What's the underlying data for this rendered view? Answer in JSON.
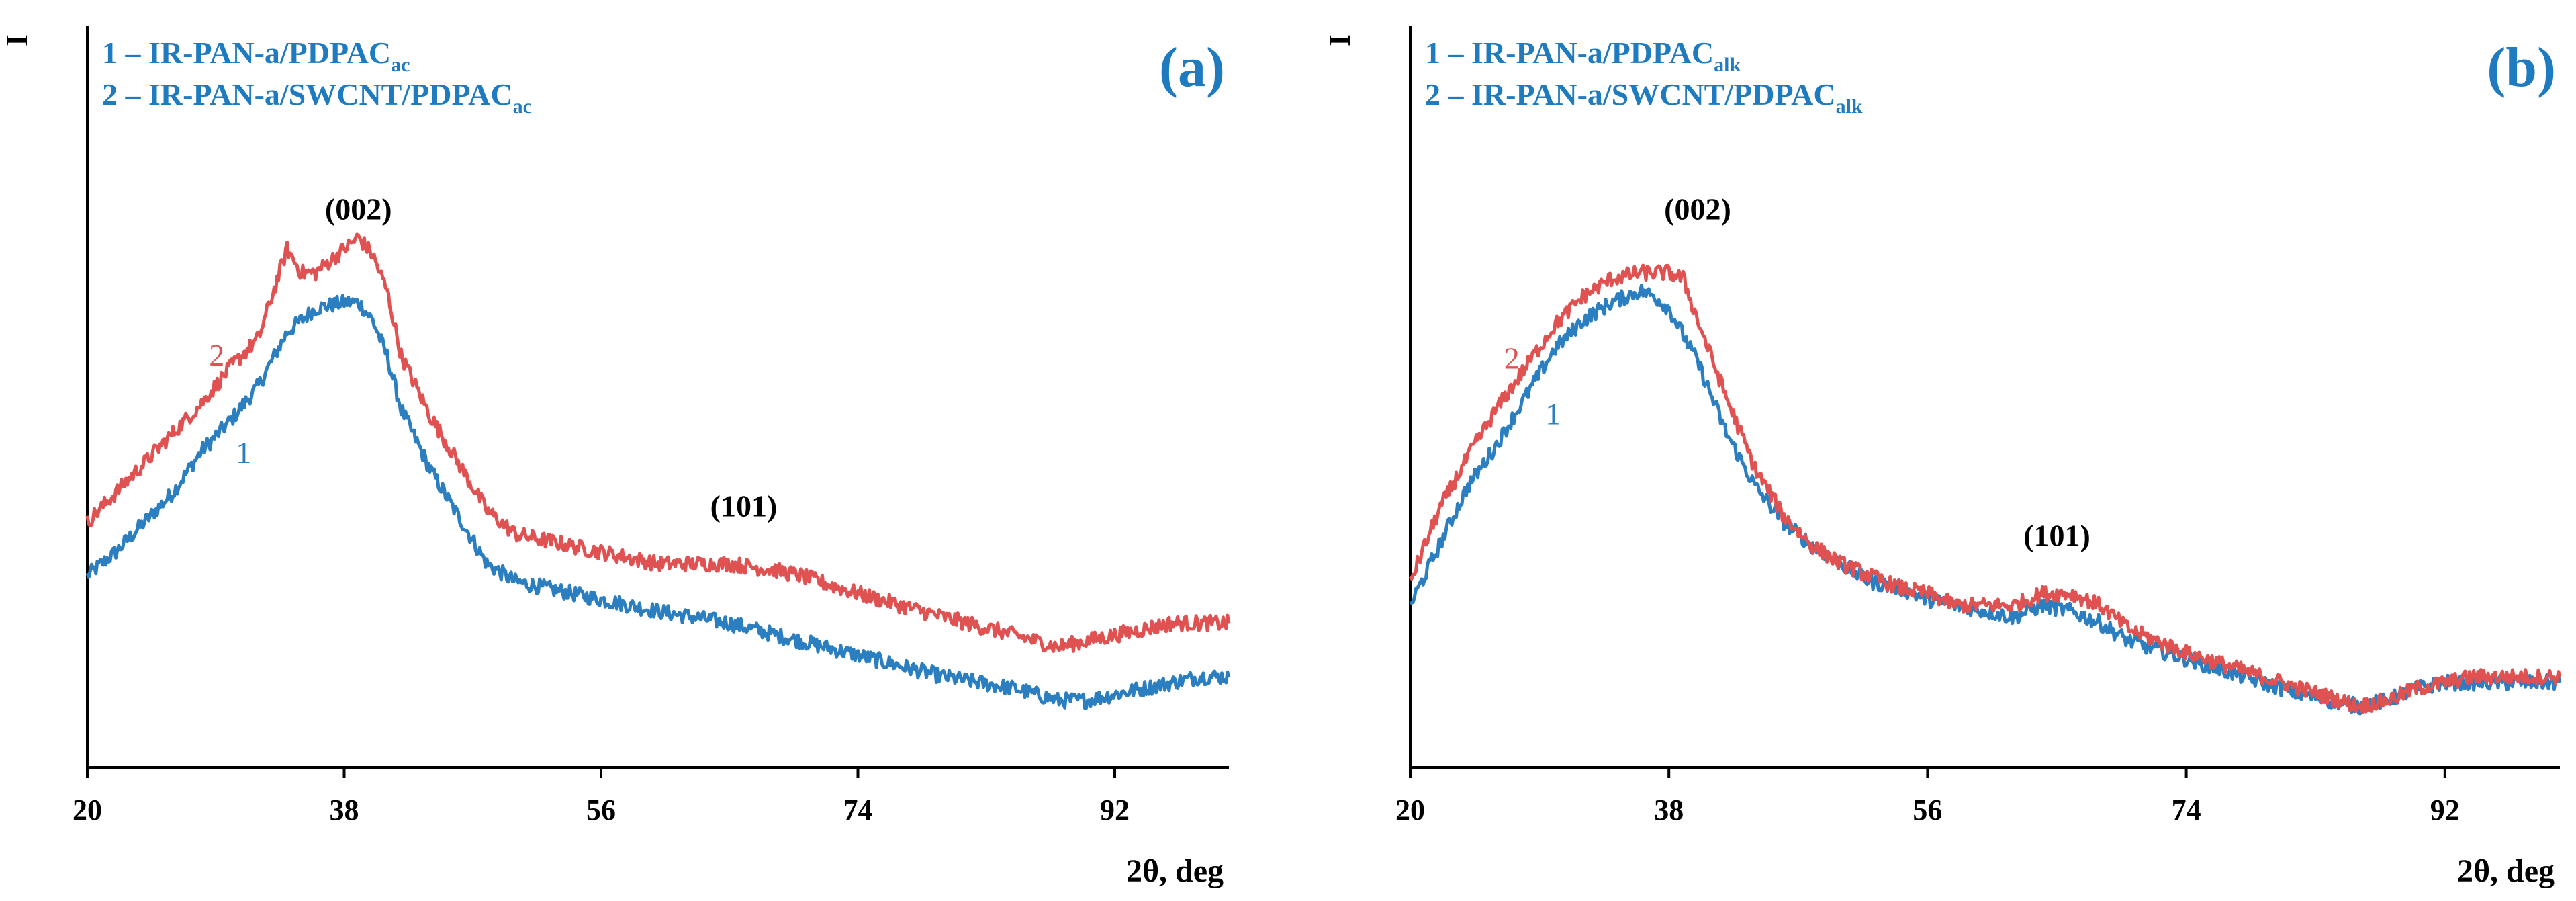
{
  "colors": {
    "series1": "#2b7fc0",
    "series2": "#e05252",
    "text_accent": "#1f7bc0"
  },
  "chart_data": [
    {
      "type": "line",
      "panel_label": "(a)",
      "title": "",
      "xlabel": "2θ, deg",
      "ylabel": "I",
      "xlim": [
        20,
        100
      ],
      "ylim": [
        0,
        100
      ],
      "x_ticks": [
        "20",
        "38",
        "56",
        "74",
        "92"
      ],
      "legend": {
        "entry1": {
          "text": "1 – IR-PAN-a/PDPAC",
          "sub": "ac"
        },
        "entry2": {
          "text": "2 – IR-PAN-a/SWCNT/PDPAC",
          "sub": "ac"
        }
      },
      "curve_labels": {
        "c1": "1",
        "c2": "2"
      },
      "curve_label_x": {
        "c1": 29,
        "c2": 29
      },
      "peak_labels": [
        {
          "label": "(002)",
          "x": 39,
          "y": 90
        },
        {
          "label": "(101)",
          "x": 66,
          "y": 40
        }
      ],
      "series": [
        {
          "name": "1",
          "x": [
            20,
            22,
            24,
            26,
            28,
            30,
            32,
            34,
            36,
            38,
            39,
            40,
            41,
            42,
            44,
            46,
            48,
            50,
            52,
            54,
            56,
            60,
            65,
            70,
            75,
            80,
            85,
            88,
            90,
            92,
            94,
            96,
            98,
            100
          ],
          "y": [
            30,
            34,
            39,
            44,
            51,
            56,
            62,
            71,
            75,
            76,
            76,
            73,
            67,
            58,
            48,
            40,
            32,
            29,
            28,
            27,
            26,
            24,
            22,
            19,
            16,
            13,
            11,
            9,
            9,
            10,
            11,
            12,
            13,
            13
          ]
        },
        {
          "name": "2",
          "x": [
            20,
            22,
            24,
            26,
            28,
            30,
            32,
            34,
            35,
            36,
            38,
            39,
            40,
            41,
            42,
            44,
            46,
            48,
            50,
            52,
            56,
            60,
            65,
            68,
            70,
            74,
            80,
            85,
            88,
            90,
            92,
            94,
            96,
            100
          ],
          "y": [
            39,
            44,
            49,
            54,
            59,
            65,
            70,
            85,
            81,
            81,
            85,
            87,
            84,
            78,
            67,
            57,
            49,
            41,
            37,
            36,
            34,
            32,
            32,
            31,
            30,
            27,
            23,
            20,
            18,
            19,
            20,
            21,
            22,
            22
          ]
        }
      ]
    },
    {
      "type": "line",
      "panel_label": "(b)",
      "title": "",
      "xlabel": "2θ, deg",
      "ylabel": "I",
      "xlim": [
        20,
        100
      ],
      "ylim": [
        0,
        100
      ],
      "x_ticks": [
        "20",
        "38",
        "56",
        "74",
        "92"
      ],
      "legend": {
        "entry1": {
          "text": "1 – IR-PAN-a/PDPAC",
          "sub": "alk"
        },
        "entry2": {
          "text": "2 – IR-PAN-a/SWCNT/PDPAC",
          "sub": "alk"
        }
      },
      "curve_labels": {
        "c1": "1",
        "c2": "2"
      },
      "curve_label_x": {
        "c1": 28,
        "c2": 27
      },
      "peak_labels": [
        {
          "label": "(002)",
          "x": 40,
          "y": 90
        },
        {
          "label": "(101)",
          "x": 65,
          "y": 35
        }
      ],
      "series": [
        {
          "name": "1",
          "x": [
            20,
            22,
            24,
            26,
            28,
            30,
            32,
            34,
            36,
            37,
            38,
            40,
            42,
            44,
            46,
            48,
            50,
            52,
            54,
            56,
            58,
            60,
            62,
            64,
            66,
            68,
            70,
            74,
            78,
            82,
            86,
            88,
            90,
            92,
            94,
            96,
            100
          ],
          "y": [
            25,
            35,
            45,
            52,
            60,
            68,
            73,
            76,
            78,
            77,
            75,
            66,
            54,
            45,
            39,
            35,
            32,
            29,
            28,
            26,
            25,
            24,
            23,
            25,
            24,
            22,
            19,
            16,
            13,
            10,
            8,
            9,
            11,
            12,
            12,
            12,
            12
          ]
        },
        {
          "name": "2",
          "x": [
            20,
            22,
            24,
            26,
            28,
            30,
            32,
            34,
            36,
            38,
            39,
            40,
            42,
            44,
            46,
            48,
            50,
            52,
            54,
            56,
            58,
            60,
            62,
            64,
            66,
            68,
            70,
            74,
            78,
            82,
            86,
            88,
            90,
            92,
            94,
            96,
            100
          ],
          "y": [
            29,
            41,
            50,
            58,
            65,
            72,
            77,
            80,
            81,
            81,
            80,
            73,
            60,
            48,
            40,
            35,
            32,
            30,
            28,
            27,
            25,
            25,
            25,
            27,
            27,
            25,
            21,
            17,
            14,
            11,
            8,
            9,
            11,
            12,
            13,
            13,
            13
          ]
        }
      ]
    }
  ]
}
